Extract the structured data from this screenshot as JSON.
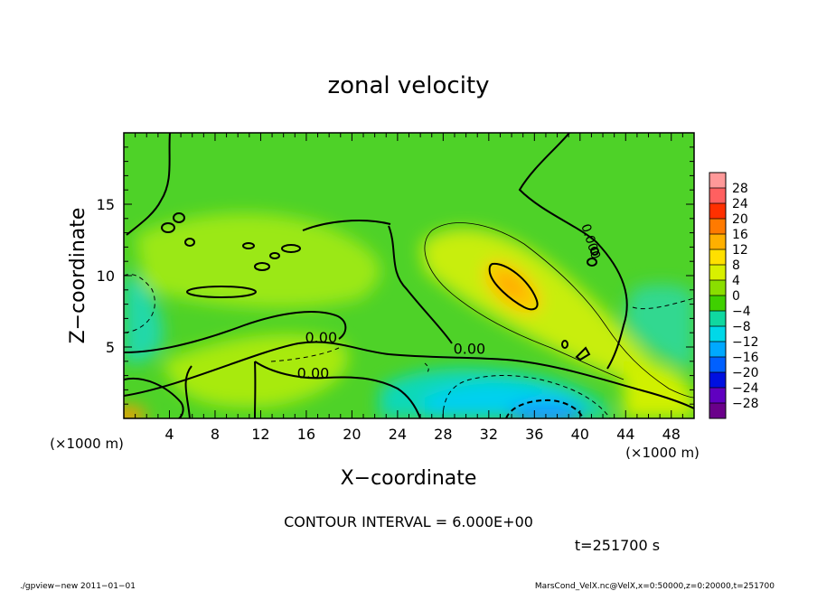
{
  "chart_data": {
    "type": "heatmap",
    "title": "zonal velocity",
    "xlabel": "X−coordinate",
    "ylabel": "Z−coordinate",
    "x_unit_label": "(×1000 m)",
    "y_unit_label": "(×1000 m)",
    "xlim": [
      0,
      50
    ],
    "ylim": [
      0,
      20
    ],
    "x_ticks": [
      4,
      8,
      12,
      16,
      20,
      24,
      28,
      32,
      36,
      40,
      44,
      48
    ],
    "y_ticks": [
      5,
      10,
      15
    ],
    "colorbar_levels": [
      28,
      24,
      20,
      16,
      12,
      8,
      4,
      0,
      -4,
      -8,
      -12,
      -16,
      -20,
      -24,
      -28
    ],
    "colorbar_labels": [
      "28",
      "24",
      "20",
      "16",
      "12",
      "8",
      "4",
      "0",
      "−4",
      "−8",
      "−12",
      "−16",
      "−20",
      "−24",
      "−28"
    ],
    "colorbar_colors": [
      "#ff9999",
      "#ff6060",
      "#ff3000",
      "#ff7a00",
      "#ffb000",
      "#ffe000",
      "#d8f000",
      "#8ade00",
      "#3fd000",
      "#10d8a0",
      "#00d8e8",
      "#00a8ff",
      "#0060ff",
      "#0010e0",
      "#6000c0",
      "#6a008a"
    ],
    "contour_interval": 6,
    "contour_labels": [
      {
        "text": "0.00",
        "x": 17.3,
        "y": 5.7
      },
      {
        "text": "0.00",
        "x": 16.6,
        "y": 3.2
      },
      {
        "text": "0.00",
        "x": 30.3,
        "y": 4.9
      }
    ],
    "contour_label_vertical": {
      "text": "0.000",
      "x": 40.6,
      "y": 12.3
    },
    "field_features": [
      {
        "desc": "jet core",
        "cx": 33.8,
        "cy": 9.7,
        "rx": 5.5,
        "ry": 2.5,
        "rot": 40,
        "value": 10
      },
      {
        "desc": "low-level negative",
        "cx": 33.5,
        "cy": 1.0,
        "rx": 7,
        "ry": 1.8,
        "value": -12
      }
    ]
  },
  "annotations": {
    "contour_interval_text": "CONTOUR INTERVAL = 6.000E+00",
    "time_text": "t=251700 s",
    "footer_left": "./gpview−new   2011−01−01",
    "footer_right": "MarsCond_VelX.nc@VelX,x=0:50000,z=0:20000,t=251700"
  }
}
